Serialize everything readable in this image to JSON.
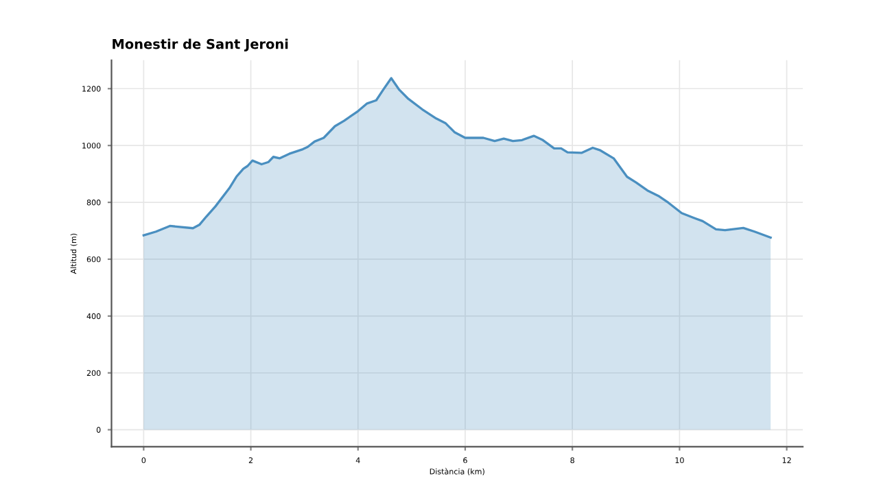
{
  "chart_data": {
    "type": "area",
    "title": "Monestir de Sant Jeroni",
    "xlabel": "Distància (km)",
    "ylabel": "Altitud (m)",
    "x": [
      0,
      0.23,
      0.49,
      0.92,
      1.04,
      1.17,
      1.34,
      1.6,
      1.73,
      1.86,
      1.94,
      2.03,
      2.2,
      2.33,
      2.42,
      2.54,
      2.72,
      2.97,
      3.06,
      3.19,
      3.36,
      3.57,
      3.74,
      4.0,
      4.17,
      4.34,
      4.47,
      4.62,
      4.77,
      4.94,
      5.2,
      5.46,
      5.63,
      5.8,
      6.0,
      6.34,
      6.55,
      6.72,
      6.89,
      7.06,
      7.28,
      7.45,
      7.66,
      7.79,
      7.91,
      8.17,
      8.38,
      8.51,
      8.77,
      9.02,
      9.19,
      9.4,
      9.62,
      9.79,
      10.04,
      10.26,
      10.43,
      10.68,
      10.85,
      11.19,
      11.4,
      11.7
    ],
    "series": [
      {
        "color": "#4a8fc0",
        "values": [
          684,
          697,
          717,
          709,
          721,
          750,
          786,
          850,
          890,
          918,
          928,
          947,
          934,
          942,
          960,
          955,
          971,
          987,
          995,
          1014,
          1027,
          1068,
          1087,
          1121,
          1148,
          1159,
          1196,
          1237,
          1196,
          1164,
          1127,
          1095,
          1079,
          1047,
          1027,
          1027,
          1016,
          1024,
          1016,
          1019,
          1034,
          1019,
          990,
          990,
          976,
          974,
          992,
          984,
          955,
          890,
          870,
          842,
          821,
          799,
          762,
          746,
          734,
          705,
          702,
          710,
          697,
          676
        ]
      }
    ],
    "xlim": [
      -0.6,
      12.3
    ],
    "ylim": [
      -60,
      1300
    ],
    "xticks": [
      0,
      2,
      4,
      6,
      8,
      10,
      12
    ],
    "yticks": [
      0,
      200,
      400,
      600,
      800,
      1000,
      1200
    ],
    "grid": true
  }
}
